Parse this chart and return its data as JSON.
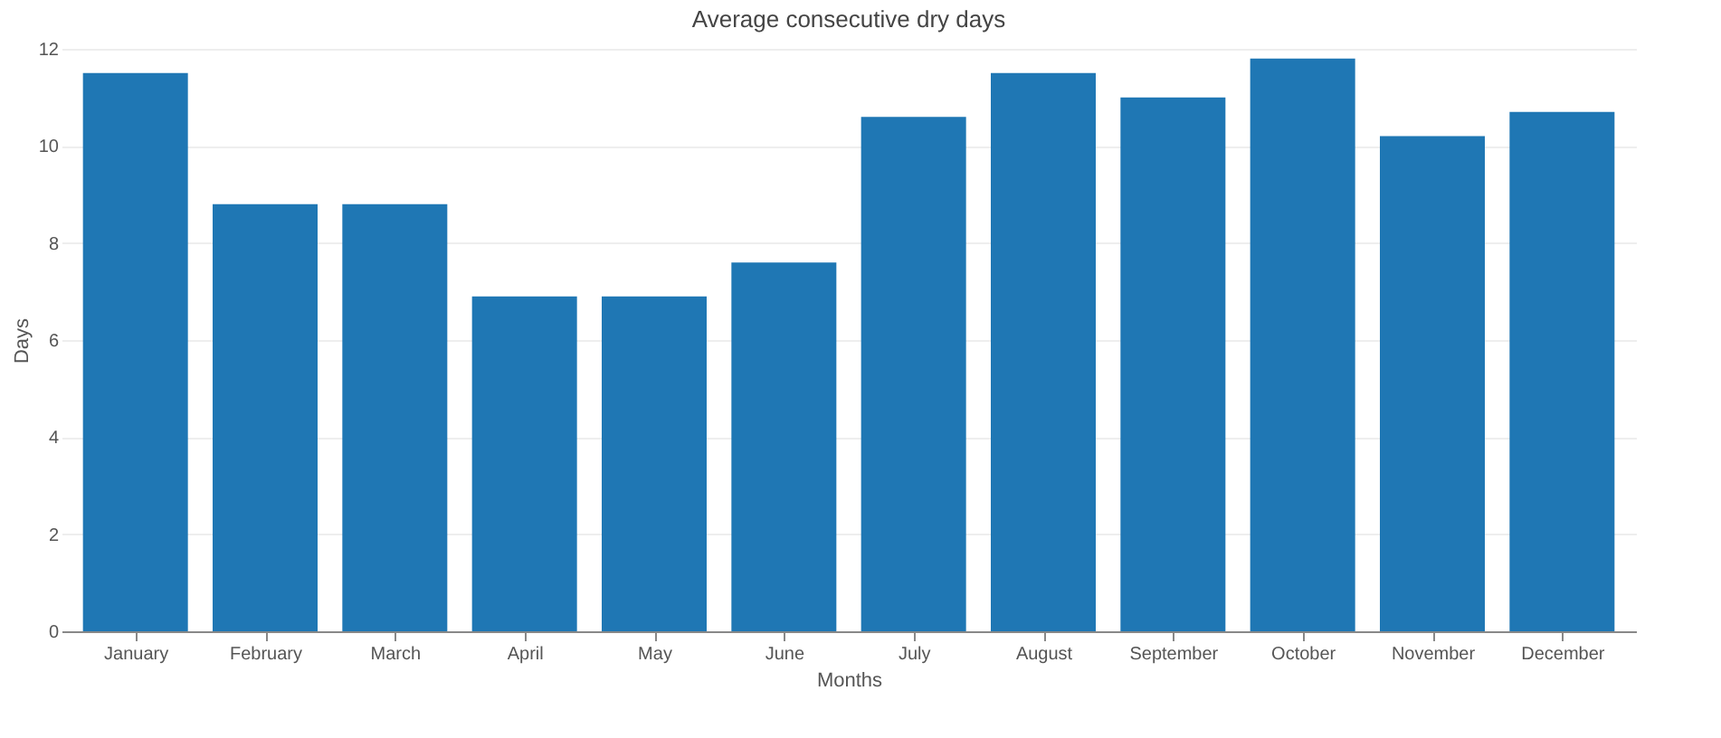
{
  "chart_data": {
    "type": "bar",
    "title": "Average consecutive dry days",
    "xlabel": "Months",
    "ylabel": "Days",
    "categories": [
      "January",
      "February",
      "March",
      "April",
      "May",
      "June",
      "July",
      "August",
      "September",
      "October",
      "November",
      "December"
    ],
    "values": [
      11.5,
      8.8,
      8.8,
      6.9,
      6.9,
      7.6,
      10.6,
      11.5,
      11.0,
      11.8,
      10.2,
      10.7
    ],
    "color": "#1f77b4",
    "ylim": [
      0,
      12
    ],
    "yticks": [
      0,
      2,
      4,
      6,
      8,
      10,
      12
    ],
    "grid": "y"
  }
}
